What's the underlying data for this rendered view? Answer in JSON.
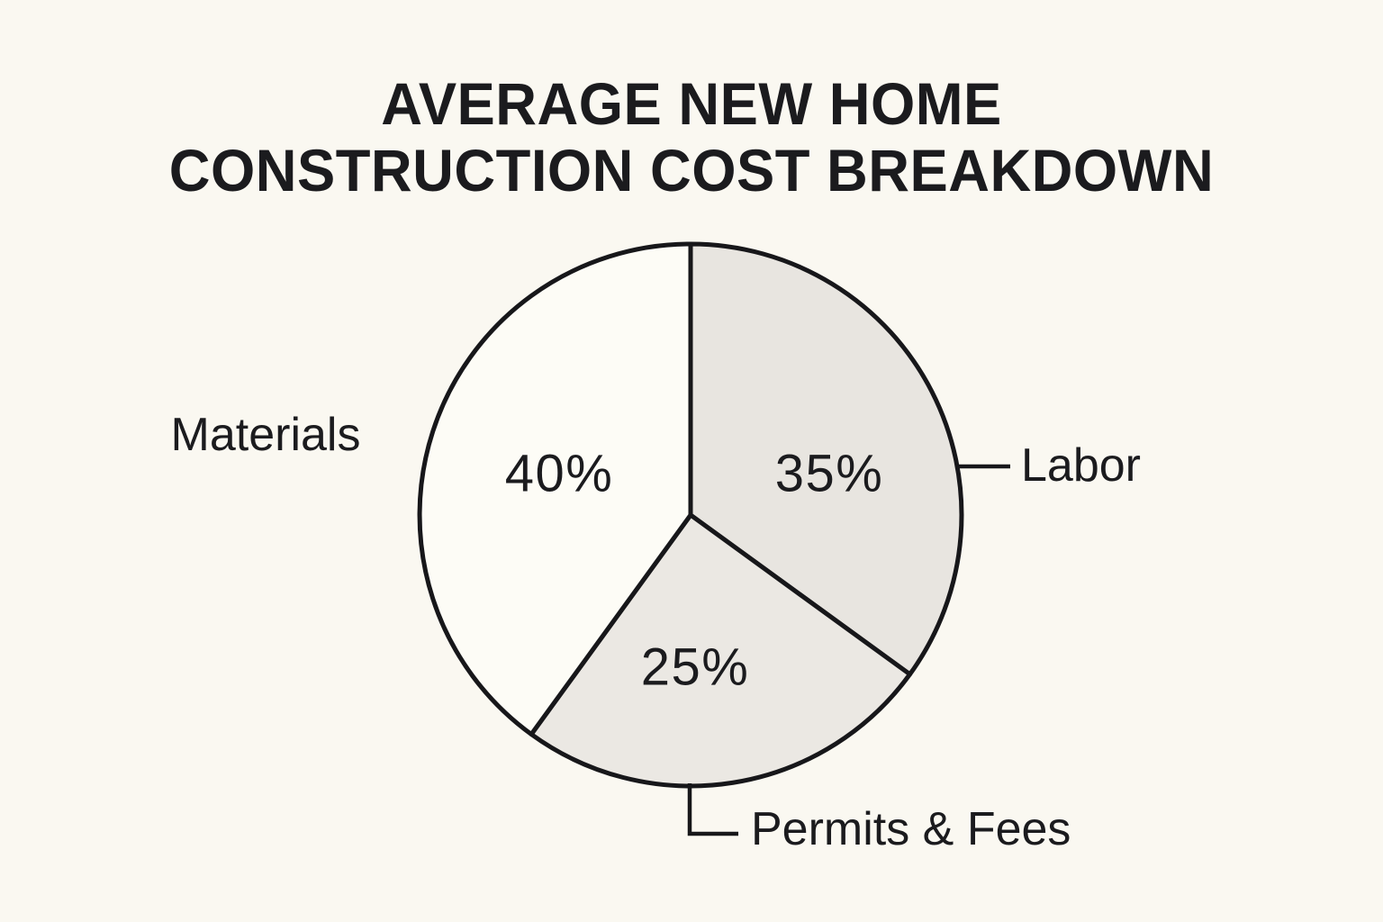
{
  "page": {
    "background_color": "#faf8f1",
    "text_color": "#1b1b1e"
  },
  "title_lines": [
    "AVERAGE NEW HOME",
    "CONSTRUCTION COST BREAKDOWN"
  ],
  "chart_data": {
    "type": "pie",
    "title": "AVERAGE NEW HOME CONSTRUCTION COST BREAKDOWN",
    "direction": "clockwise",
    "start_angle_deg": 0,
    "stroke_color": "#17171a",
    "legend_position": "outside-callout-labels",
    "slices": [
      {
        "label": "Labor",
        "value": 35,
        "pct_label": "35%",
        "color": "#e8e5e0"
      },
      {
        "label": "Permits & Fees",
        "value": 25,
        "pct_label": "25%",
        "color": "#ebe8e3"
      },
      {
        "label": "Materials",
        "value": 40,
        "pct_label": "40%",
        "color": "#fdfcf6"
      }
    ]
  }
}
